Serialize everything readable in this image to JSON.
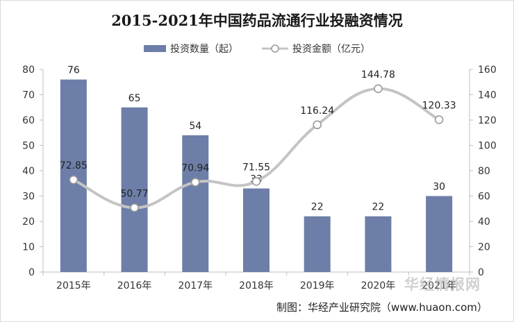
{
  "chart_data": {
    "type": "bar",
    "title": "2015-2021年中国药品流通行业投融资情况",
    "categories": [
      "2015年",
      "2016年",
      "2017年",
      "2018年",
      "2019年",
      "2020年",
      "2021年"
    ],
    "series": [
      {
        "name": "投资数量（起）",
        "type": "bar",
        "axis": "left",
        "values": [
          76,
          65,
          54,
          33,
          22,
          22,
          30
        ]
      },
      {
        "name": "投资金额（亿元）",
        "type": "line",
        "axis": "right",
        "values": [
          72.85,
          50.77,
          70.94,
          71.55,
          116.24,
          144.78,
          120.33
        ]
      }
    ],
    "left_ylim": [
      0,
      80
    ],
    "left_ticks": [
      0,
      10,
      20,
      30,
      40,
      50,
      60,
      70,
      80
    ],
    "right_ylim": [
      0,
      160
    ],
    "right_ticks": [
      0,
      20,
      40,
      60,
      80,
      100,
      120,
      140,
      160
    ],
    "bar_color": "#6d7ea8",
    "line_color": "#c4c4c4",
    "legend": "top-center",
    "grid": false
  },
  "source": "制图：华经产业研究院（www.huaon.com）",
  "watermark": "华经情报网"
}
